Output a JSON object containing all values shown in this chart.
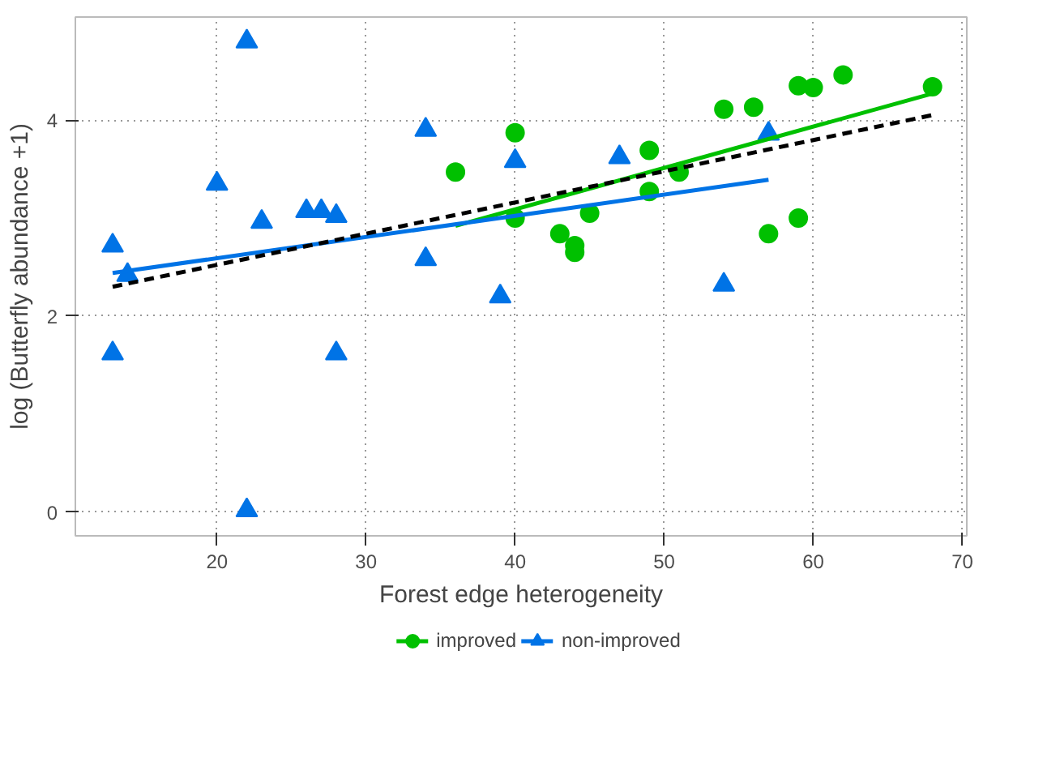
{
  "chart_data": {
    "type": "scatter",
    "xlabel": "Forest edge heterogeneity",
    "ylabel": "log (Butterfly abundance +1)",
    "xlim": [
      10.5,
      70.3
    ],
    "ylim": [
      -0.24,
      5.05
    ],
    "xticks": [
      20,
      30,
      40,
      50,
      60,
      70
    ],
    "yticks": [
      0,
      2,
      4
    ],
    "grid": true,
    "legend": "bottom",
    "series": [
      {
        "name": "improved",
        "color": "#00c000",
        "marker": "circle",
        "x": [
          36,
          40,
          40,
          43,
          44,
          44,
          45,
          49,
          49,
          51,
          54,
          56,
          57,
          59,
          59,
          60,
          62,
          68
        ],
        "values": [
          3.47,
          3.87,
          3.0,
          2.84,
          2.72,
          2.65,
          3.05,
          3.69,
          3.27,
          3.47,
          4.11,
          4.13,
          2.84,
          4.35,
          3.0,
          4.33,
          4.46,
          4.34
        ]
      },
      {
        "name": "non-improved",
        "color": "#0073e6",
        "marker": "triangle",
        "x": [
          13,
          13,
          14,
          20,
          22,
          22,
          23,
          26,
          27,
          28,
          28,
          34,
          34,
          39,
          40,
          47,
          54,
          57
        ],
        "values": [
          2.72,
          1.62,
          2.42,
          3.35,
          4.8,
          0.02,
          2.96,
          3.07,
          3.07,
          3.02,
          1.62,
          3.9,
          2.58,
          2.2,
          3.58,
          3.62,
          2.32,
          3.86
        ]
      },
      {
        "type": "line",
        "color": "#00c000",
        "line_style": "solid",
        "x": [
          36,
          68
        ],
        "values": [
          2.92,
          4.27
        ]
      },
      {
        "type": "line",
        "color": "#0073e6",
        "line_style": "solid",
        "x": [
          13,
          57
        ],
        "values": [
          2.44,
          3.39
        ]
      },
      {
        "type": "line",
        "color": "#000000",
        "line_style": "dashed",
        "x": [
          13,
          68
        ],
        "values": [
          2.3,
          4.05
        ]
      }
    ]
  }
}
